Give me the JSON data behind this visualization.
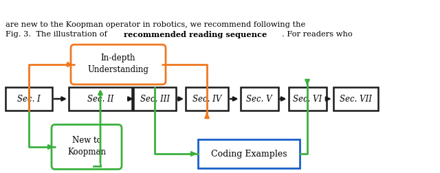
{
  "sections": [
    "Sec. I",
    "Sec. II",
    "Sec. III",
    "Sec. IV",
    "Sec. V",
    "Sec. VI",
    "Sec. VII"
  ],
  "green_color": "#3ab03e",
  "orange_color": "#f07820",
  "blue_color": "#1a5fc8",
  "black_color": "#1a1a1a",
  "bg_color": "#ffffff",
  "fig_width": 6.4,
  "fig_height": 2.53,
  "dpi": 100
}
